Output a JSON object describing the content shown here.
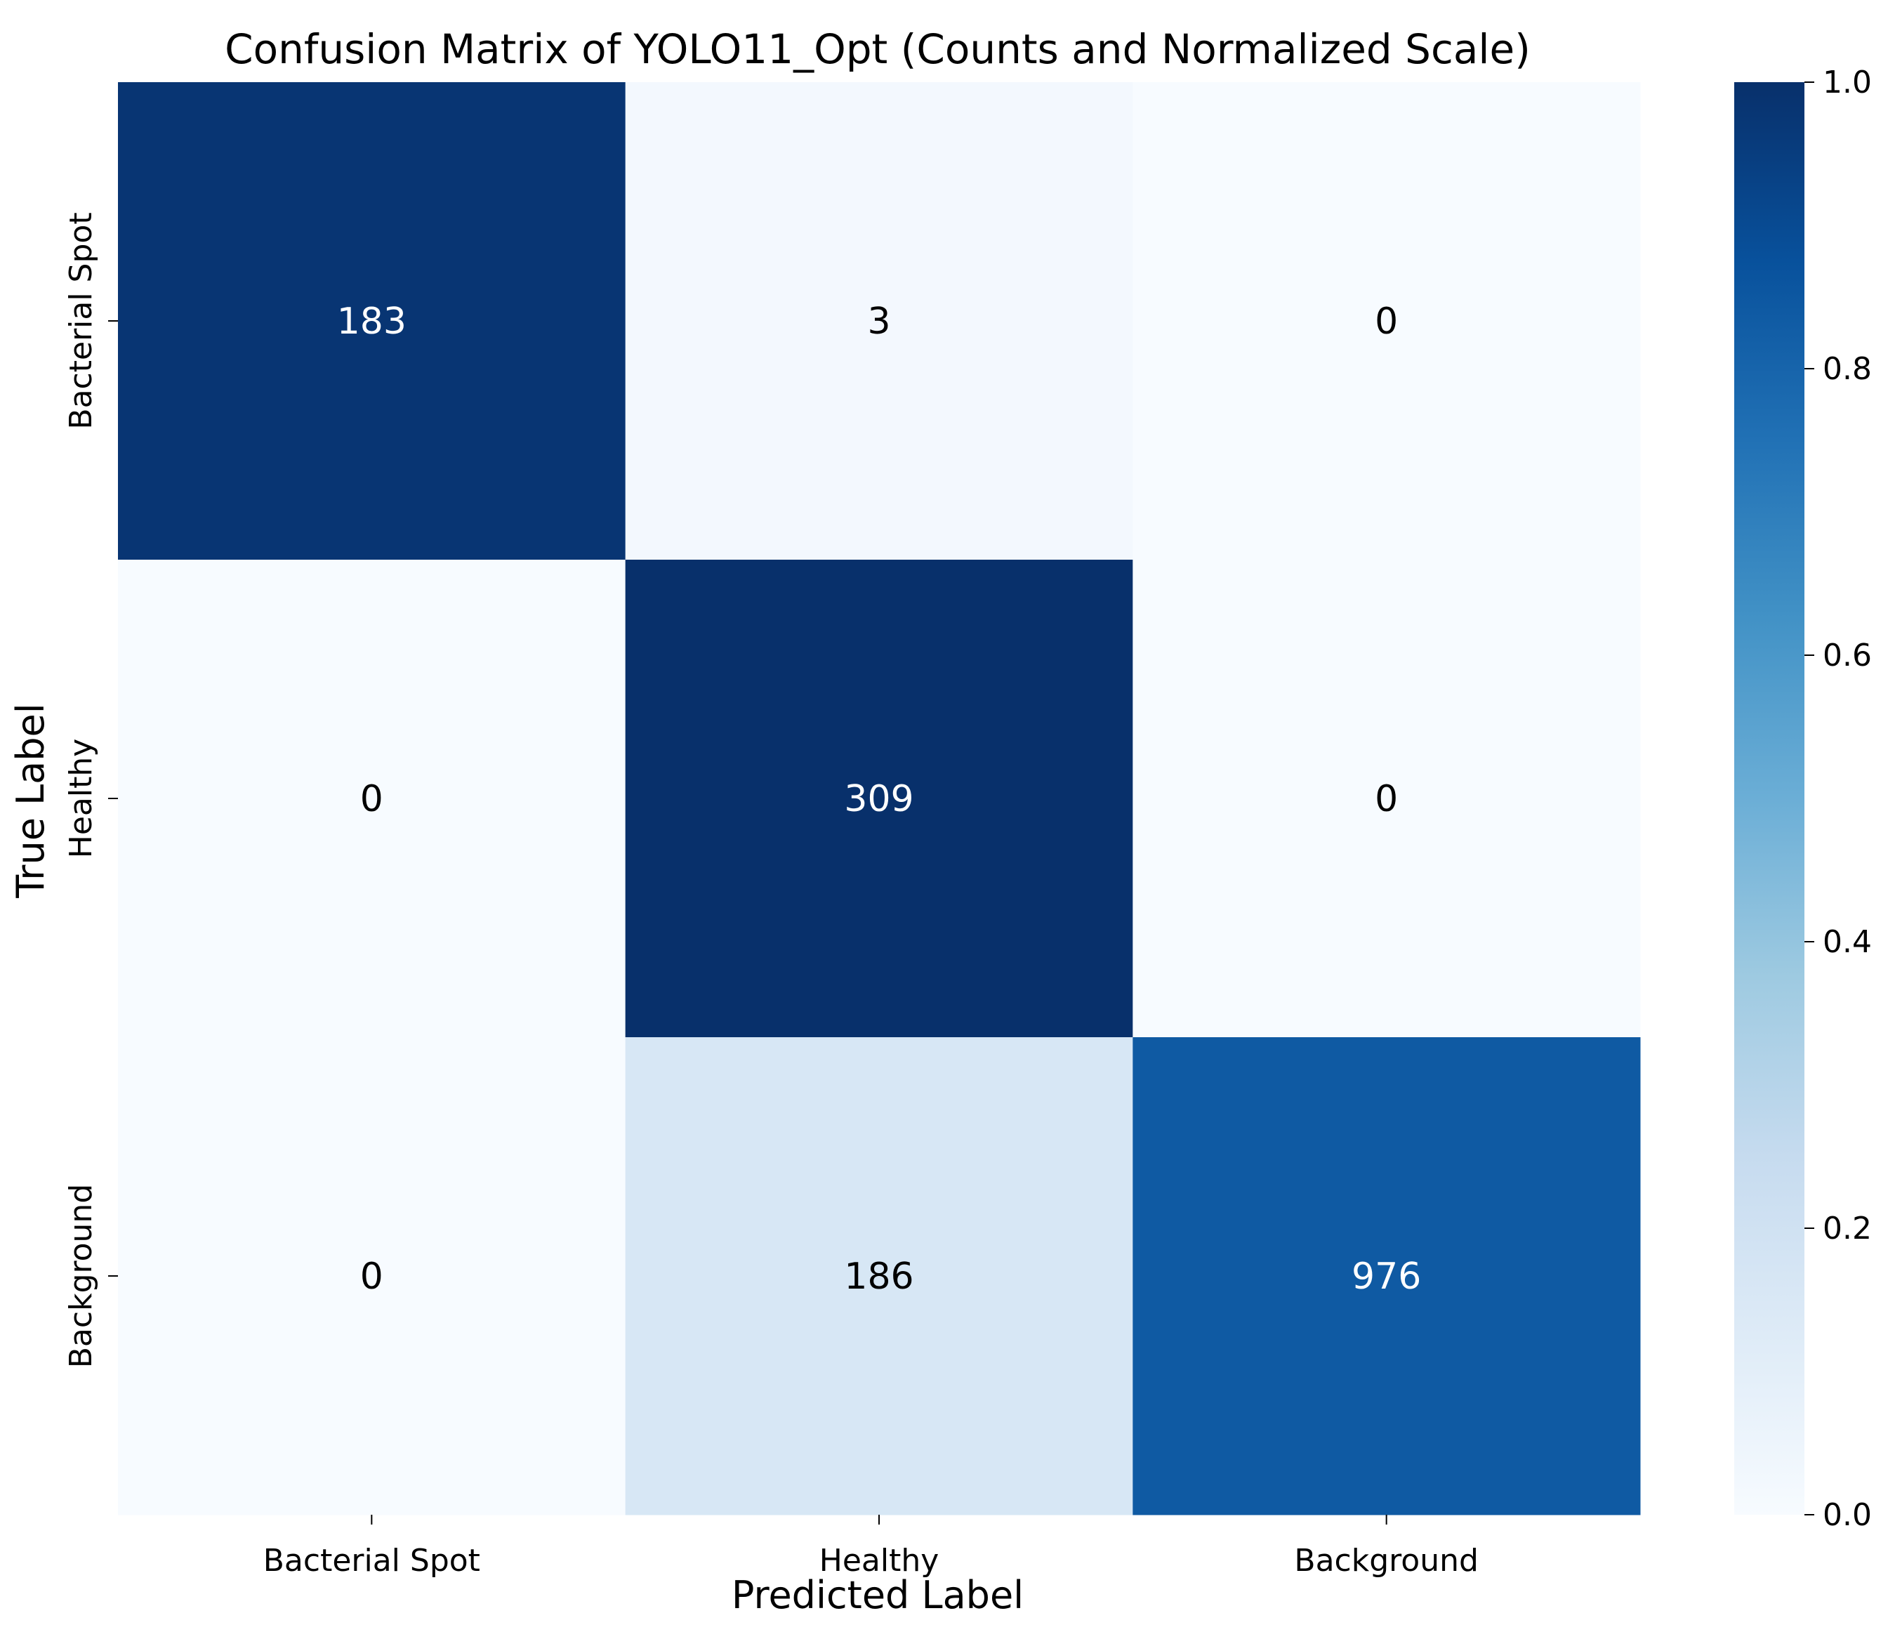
{
  "chart_data": {
    "type": "heatmap",
    "title": "Confusion Matrix of YOLO11_Opt (Counts and Normalized Scale)",
    "xlabel": "Predicted Label",
    "ylabel": "True Label",
    "x_categories": [
      "Bacterial Spot",
      "Healthy",
      "Background"
    ],
    "y_categories": [
      "Bacterial Spot",
      "Healthy",
      "Background"
    ],
    "counts": [
      [
        183,
        3,
        0
      ],
      [
        0,
        309,
        0
      ],
      [
        0,
        186,
        976
      ]
    ],
    "normalized": [
      [
        0.98,
        0.02,
        0.0
      ],
      [
        0.0,
        1.0,
        0.0
      ],
      [
        0.0,
        0.16,
        0.84
      ]
    ],
    "colorbar": {
      "range": [
        0.0,
        1.0
      ],
      "ticks": [
        "0.0",
        "0.2",
        "0.4",
        "0.6",
        "0.8",
        "1.0"
      ],
      "colormap": "Blues"
    },
    "grid": false
  }
}
